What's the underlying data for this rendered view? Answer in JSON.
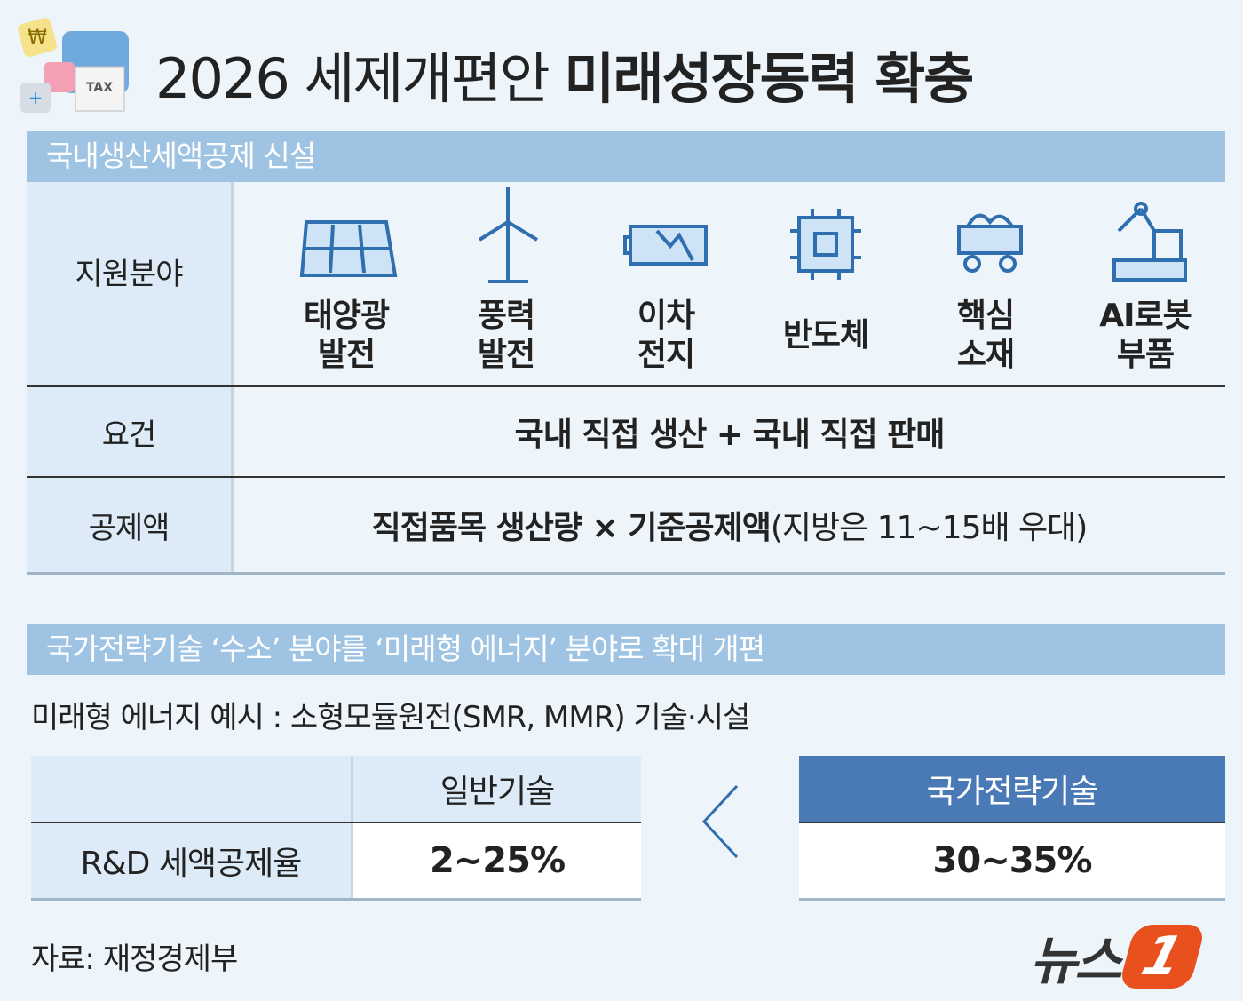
{
  "title": {
    "light": "2026 세제개편안",
    "bold": "미래성장동력 확충"
  },
  "section1": {
    "header": "국내생산세액공제 신설",
    "rows": [
      {
        "label": "지원분야",
        "items": [
          "태양광\n발전",
          "풍력\n발전",
          "이차\n전지",
          "반도체",
          "핵심\n소재",
          "AI로봇\n부품"
        ]
      },
      {
        "label": "요건",
        "text": "국내 직접 생산 + 국내 직접 판매"
      },
      {
        "label": "공제액",
        "bold": "직접품목 생산량 × 기준공제액",
        "light": "(지방은 11~15배 우대)"
      }
    ]
  },
  "section2": {
    "header": "국가전략기술 ‘수소’ 분야를 ‘미래형 에너지’ 분야로 확대 개편",
    "note": "미래형 에너지 예시 : 소형모듈원전(SMR, MMR) 기술·시설",
    "table": {
      "row_label": "R&D 세액공제율",
      "general": {
        "header": "일반기술",
        "value": "2~25%"
      },
      "strategic": {
        "header": "국가전략기술",
        "value": "30~35%"
      }
    }
  },
  "source": "자료: 재정경제부",
  "logo": {
    "text": "뉴스",
    "mark": "1"
  }
}
